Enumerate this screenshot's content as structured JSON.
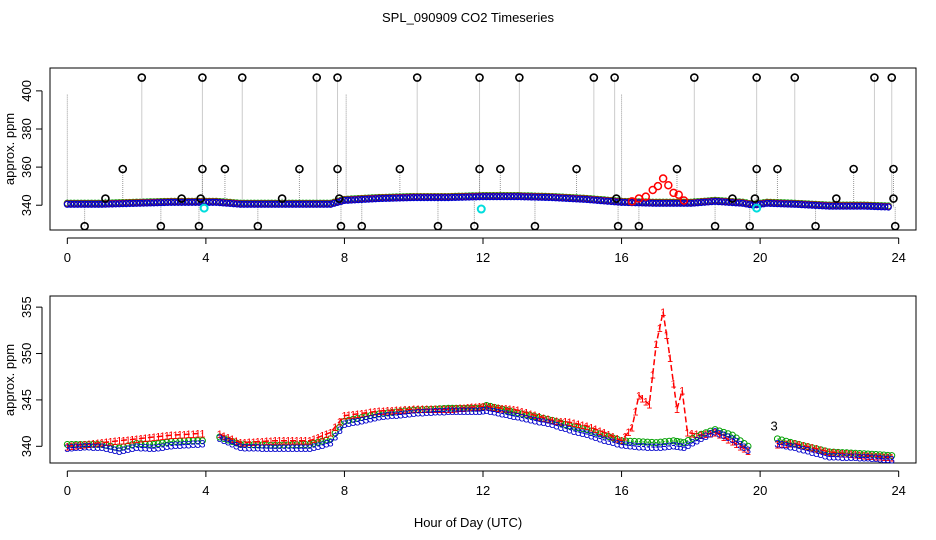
{
  "figure": {
    "title": "SPL_090909  CO2 Timeseries",
    "xlabel": "Hour of Day (UTC)"
  },
  "colors": {
    "raw": "#000000",
    "series1": "#ff0000",
    "series2": "#00a000",
    "series3": "#0000cc",
    "flagged": "#00dddd",
    "drop_lines": "#999999",
    "axis": "#000000"
  },
  "chart_data": [
    {
      "type": "scatter",
      "panel": "top",
      "ylabel": "approx. ppm",
      "xlim": [
        -0.5,
        24.5
      ],
      "ylim": [
        327,
        412
      ],
      "x_ticks": [
        0,
        4,
        8,
        12,
        16,
        20,
        24
      ],
      "y_ticks": [
        340,
        360,
        380,
        400
      ],
      "baseline_profile": {
        "x": [
          0,
          1,
          2,
          3,
          3.9,
          4.3,
          5,
          6,
          7,
          7.6,
          8,
          9,
          10,
          11,
          12,
          13,
          14,
          15,
          16,
          17,
          18,
          18.7,
          19.5,
          19.8,
          20.2,
          21,
          22,
          23,
          23.8
        ],
        "y": [
          340.5,
          340.5,
          341.0,
          341.5,
          341.5,
          341.5,
          340.5,
          340.5,
          340.5,
          340.5,
          342.5,
          343.5,
          344.0,
          344.0,
          344.5,
          344.5,
          344.0,
          343.0,
          341.5,
          341.0,
          341.0,
          342.0,
          341.0,
          340.0,
          341.0,
          340.5,
          339.5,
          339.5,
          339.0
        ]
      },
      "spikes_high": {
        "x": [
          2.15,
          3.9,
          5.05,
          7.2,
          7.8,
          10.1,
          11.9,
          13.05,
          15.2,
          15.8,
          18.1,
          19.9,
          21.0,
          23.3,
          23.8
        ],
        "y": 407
      },
      "spikes_mid": {
        "x": [
          1.6,
          3.9,
          4.55,
          6.7,
          7.8,
          9.6,
          11.9,
          12.5,
          14.7,
          17.6,
          19.9,
          20.5,
          22.7,
          23.85
        ],
        "y": 359
      },
      "spikes_low": {
        "x": [
          0.5,
          2.7,
          3.8,
          5.5,
          7.9,
          8.5,
          10.7,
          11.75,
          13.5,
          15.9,
          16.5,
          18.7,
          19.7,
          21.6,
          23.9
        ],
        "y": 329
      },
      "spikes_small": {
        "x": [
          1.1,
          3.3,
          3.85,
          6.2,
          7.85,
          15.85,
          19.2,
          19.85,
          22.2,
          23.85
        ],
        "y": 343.5
      },
      "red_event": {
        "x": [
          16.3,
          16.5,
          16.7,
          16.9,
          17.05,
          17.2,
          17.35,
          17.5,
          17.65,
          17.8
        ],
        "y": [
          342.0,
          343.5,
          344.5,
          348.0,
          350.0,
          354.0,
          350.5,
          346.5,
          345.5,
          342.5
        ]
      },
      "flagged_points": {
        "x": [
          3.95,
          11.95,
          19.9
        ],
        "y": [
          338.5,
          338.0,
          338.5
        ]
      }
    },
    {
      "type": "scatter",
      "panel": "bottom",
      "ylabel": "approx. ppm",
      "xlim": [
        -0.5,
        24.5
      ],
      "ylim": [
        338.2,
        356.2
      ],
      "x_ticks": [
        0,
        4,
        8,
        12,
        16,
        20,
        24
      ],
      "y_ticks": [
        340,
        345,
        350,
        355
      ],
      "series": [
        {
          "name": "1",
          "marker": "1",
          "x": [
            0,
            0.5,
            1,
            1.5,
            2,
            2.5,
            3,
            3.5,
            3.9,
            4.0,
            4.1,
            4.4,
            5,
            6,
            7,
            7.6,
            8,
            9,
            10,
            11,
            11.9,
            12.1,
            13,
            14,
            14.5,
            15,
            15.5,
            16,
            16.3,
            16.5,
            16.8,
            17.0,
            17.2,
            17.4,
            17.6,
            17.75,
            17.9,
            18.3,
            18.7,
            19.2,
            19.65,
            20.1,
            20.5,
            21,
            22,
            23,
            23.8
          ],
          "y": [
            340.0,
            340.2,
            340.4,
            340.6,
            340.8,
            341.0,
            341.2,
            341.3,
            341.4,
            null,
            null,
            341.3,
            340.4,
            340.6,
            340.6,
            341.5,
            343.3,
            343.8,
            344.0,
            344.0,
            344.3,
            344.3,
            343.9,
            342.8,
            342.6,
            342.2,
            341.5,
            340.6,
            342.0,
            345.5,
            344.5,
            351.0,
            354.5,
            349.5,
            344.0,
            346.0,
            341.5,
            341.2,
            341.5,
            340.5,
            339.5,
            null,
            340.2,
            340.3,
            339.4,
            339.0,
            338.8
          ]
        },
        {
          "name": "2",
          "marker": "o",
          "x": [
            0,
            0.5,
            1,
            1.5,
            2,
            2.5,
            3,
            3.5,
            3.9,
            4.0,
            4.1,
            4.4,
            5,
            6,
            7,
            7.6,
            8,
            9,
            10,
            11,
            11.9,
            12.1,
            13,
            14,
            14.5,
            15,
            15.5,
            16,
            16.5,
            17,
            17.5,
            17.8,
            18.3,
            18.7,
            19.2,
            19.65,
            20.1,
            20.5,
            21,
            22,
            23,
            23.8
          ],
          "y": [
            340.2,
            340.2,
            340.2,
            339.8,
            340.3,
            340.2,
            340.5,
            340.6,
            340.6,
            null,
            null,
            341.0,
            340.2,
            340.1,
            340.2,
            340.8,
            342.7,
            343.5,
            343.9,
            344.1,
            344.1,
            344.4,
            343.6,
            342.8,
            342.2,
            341.8,
            341.2,
            340.6,
            340.5,
            340.4,
            340.6,
            340.4,
            341.3,
            341.8,
            341.2,
            340.0,
            null,
            340.8,
            340.3,
            339.4,
            339.2,
            339.0
          ]
        },
        {
          "name": "3",
          "marker": "3",
          "x": [
            0,
            0.5,
            1,
            1.5,
            2,
            2.5,
            3,
            3.5,
            3.9,
            4.0,
            4.1,
            4.4,
            5,
            6,
            7,
            7.6,
            8,
            9,
            10,
            11,
            11.9,
            12.1,
            13,
            14,
            14.5,
            15,
            15.5,
            16,
            16.5,
            17,
            17.5,
            17.8,
            18.3,
            18.7,
            19.2,
            19.65,
            20.1,
            20.5,
            21,
            22,
            23,
            23.8
          ],
          "y": [
            339.8,
            340.0,
            339.9,
            339.5,
            339.9,
            339.8,
            340.1,
            340.2,
            340.3,
            null,
            null,
            340.9,
            339.9,
            339.8,
            339.8,
            340.4,
            342.4,
            343.2,
            343.6,
            343.8,
            343.8,
            343.9,
            343.2,
            342.4,
            341.8,
            341.3,
            340.7,
            340.2,
            340.0,
            339.9,
            340.1,
            339.9,
            340.9,
            341.6,
            340.8,
            339.6,
            null,
            340.3,
            339.9,
            338.9,
            338.8,
            338.6
          ]
        }
      ],
      "annotations": [
        {
          "text": "3",
          "x": 20.3,
          "y": 341.7
        }
      ]
    }
  ]
}
